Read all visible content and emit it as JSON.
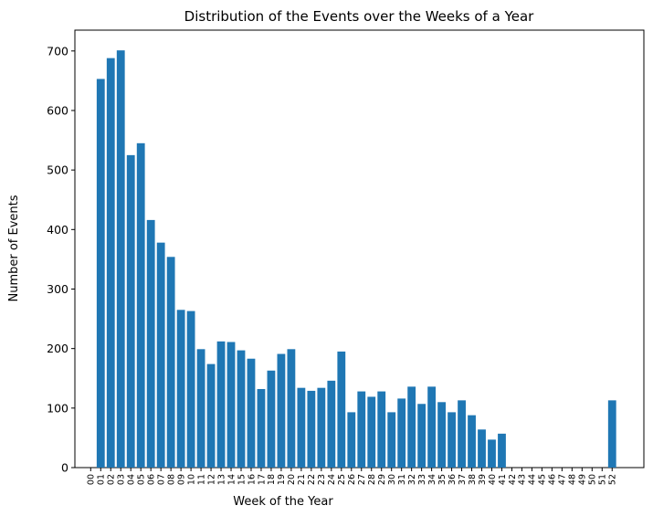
{
  "chart_data": {
    "type": "bar",
    "title": "Distribution of the Events over the Weeks of a Year",
    "xlabel": "Week of the Year",
    "ylabel": "Number of Events",
    "ylim": [
      0,
      735
    ],
    "yticks": [
      0,
      100,
      200,
      300,
      400,
      500,
      600,
      700
    ],
    "grid": false,
    "bar_color": "#1f77b4",
    "categories": [
      "00",
      "01",
      "02",
      "03",
      "04",
      "05",
      "06",
      "07",
      "08",
      "09",
      "10",
      "11",
      "12",
      "13",
      "14",
      "15",
      "16",
      "17",
      "18",
      "19",
      "20",
      "21",
      "22",
      "23",
      "24",
      "25",
      "26",
      "27",
      "28",
      "29",
      "30",
      "31",
      "32",
      "33",
      "34",
      "35",
      "36",
      "37",
      "38",
      "39",
      "40",
      "41",
      "42",
      "43",
      "44",
      "45",
      "46",
      "47",
      "48",
      "49",
      "50",
      "51",
      "52"
    ],
    "values": [
      0,
      653,
      688,
      701,
      525,
      545,
      416,
      378,
      354,
      265,
      263,
      199,
      174,
      212,
      211,
      197,
      183,
      132,
      163,
      191,
      199,
      134,
      129,
      134,
      146,
      195,
      93,
      128,
      119,
      128,
      93,
      116,
      136,
      107,
      136,
      110,
      93,
      113,
      88,
      64,
      47,
      57,
      0,
      0,
      0,
      0,
      0,
      0,
      0,
      0,
      0,
      0,
      113
    ]
  }
}
